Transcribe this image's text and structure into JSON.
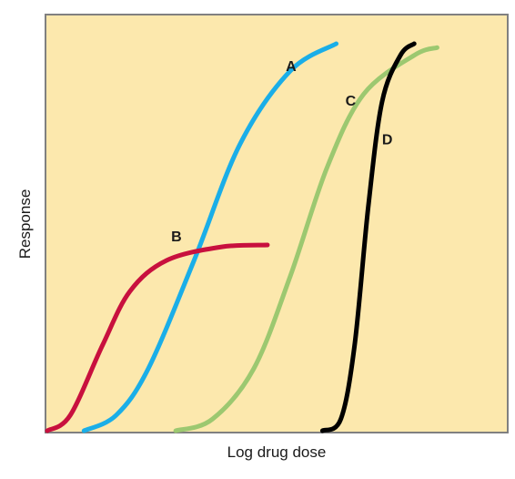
{
  "chart_data": {
    "type": "line",
    "title": "",
    "xlabel": "Log drug dose",
    "ylabel": "Response",
    "grid": false,
    "legend": "none",
    "xlim": [
      0,
      1
    ],
    "ylim": [
      0,
      1
    ],
    "colors": {
      "background": "#fce8ad",
      "frame": "#808080"
    },
    "series": [
      {
        "name": "A",
        "color": "#1aaee8",
        "points": [
          [
            0.08,
            0.0
          ],
          [
            0.15,
            0.04
          ],
          [
            0.22,
            0.16
          ],
          [
            0.32,
            0.44
          ],
          [
            0.42,
            0.74
          ],
          [
            0.53,
            0.93
          ],
          [
            0.63,
            1.0
          ]
        ],
        "label_at": [
          0.52,
          0.93
        ]
      },
      {
        "name": "B",
        "color": "#c8103e",
        "points": [
          [
            0.0,
            0.0
          ],
          [
            0.05,
            0.04
          ],
          [
            0.12,
            0.22
          ],
          [
            0.18,
            0.36
          ],
          [
            0.26,
            0.44
          ],
          [
            0.38,
            0.475
          ],
          [
            0.48,
            0.48
          ]
        ],
        "label_at": [
          0.27,
          0.49
        ]
      },
      {
        "name": "C",
        "color": "#9cc870",
        "points": [
          [
            0.28,
            0.0
          ],
          [
            0.36,
            0.03
          ],
          [
            0.45,
            0.16
          ],
          [
            0.53,
            0.4
          ],
          [
            0.61,
            0.68
          ],
          [
            0.69,
            0.87
          ],
          [
            0.8,
            0.97
          ],
          [
            0.85,
            0.99
          ]
        ],
        "label_at": [
          0.65,
          0.84
        ]
      },
      {
        "name": "D",
        "color": "#000000",
        "points": [
          [
            0.6,
            0.0
          ],
          [
            0.64,
            0.03
          ],
          [
            0.67,
            0.22
          ],
          [
            0.7,
            0.58
          ],
          [
            0.73,
            0.85
          ],
          [
            0.77,
            0.97
          ],
          [
            0.8,
            1.0
          ]
        ],
        "label_at": [
          0.73,
          0.74
        ]
      }
    ]
  }
}
